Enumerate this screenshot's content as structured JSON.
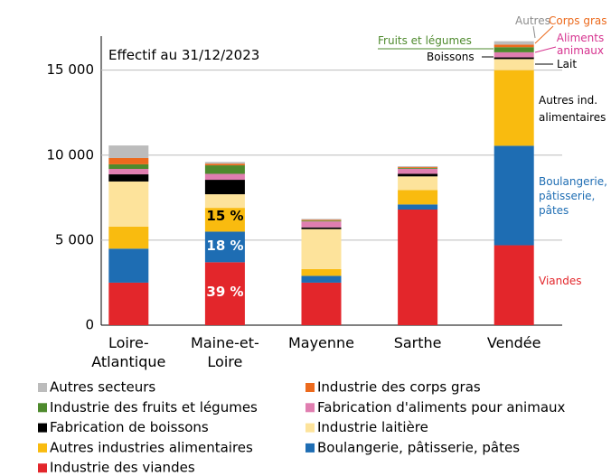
{
  "chart_data": {
    "type": "bar",
    "stacked": true,
    "categories": [
      "Loire-Atlantique",
      "Maine-et-Loire",
      "Mayenne",
      "Sarthe",
      "Vendée"
    ],
    "series": [
      {
        "name": "Industrie des viandes",
        "color": "#e3262b",
        "values": [
          2500,
          3700,
          2500,
          6800,
          4700
        ]
      },
      {
        "name": "Boulangerie, pâtisserie, pâtes",
        "color": "#1e6db3",
        "values": [
          2000,
          1800,
          400,
          300,
          5850
        ]
      },
      {
        "name": "Autres industries alimentaires",
        "color": "#f9bb0f",
        "values": [
          1300,
          1400,
          400,
          850,
          4450
        ]
      },
      {
        "name": "Industrie laitière",
        "color": "#fde39b",
        "values": [
          2650,
          800,
          2350,
          800,
          650
        ]
      },
      {
        "name": "Fabrication de boissons",
        "color": "#000000",
        "values": [
          420,
          850,
          100,
          150,
          100
        ]
      },
      {
        "name": "Fabrication d'aliments pour animaux",
        "color": "#e07eb0",
        "values": [
          320,
          350,
          350,
          300,
          300
        ]
      },
      {
        "name": "Industrie des fruits et légumes",
        "color": "#4e8a2d",
        "values": [
          270,
          500,
          50,
          50,
          300
        ]
      },
      {
        "name": "Industrie des corps gras",
        "color": "#ec6a1d",
        "values": [
          370,
          100,
          50,
          50,
          150
        ]
      },
      {
        "name": "Autres secteurs",
        "color": "#bcbcbc",
        "values": [
          740,
          100,
          50,
          50,
          200
        ]
      }
    ],
    "ylim": [
      0,
      17000
    ],
    "yticks": [
      0,
      {
        "value": 5000,
        "label": "5 000"
      },
      {
        "value": 10000,
        "label": "10 000"
      },
      {
        "value": 15000,
        "label": "15 000"
      }
    ],
    "grid": true,
    "annotations": [
      {
        "text": "Effectif au 31/12/2023",
        "color": "#000000"
      },
      {
        "text": "39 %",
        "color": "#ffffff"
      },
      {
        "text": "18 %",
        "color": "#ffffff"
      },
      {
        "text": "15 %",
        "color": "#000000"
      },
      {
        "text": "Autres",
        "color": "#8c8c8c"
      },
      {
        "text": "Corps gras",
        "color": "#ec6a1d"
      },
      {
        "text": "Aliments animaux",
        "color": "#d6338f"
      },
      {
        "text": "Fruits et légumes",
        "color": "#4e8a2d"
      },
      {
        "text": "Boissons",
        "color": "#000000"
      },
      {
        "text": "Lait",
        "color": "#000000"
      },
      {
        "text": "Autres ind. alimentaires",
        "color": "#000000"
      },
      {
        "text": "Boulangerie, pâtisserie, pâtes",
        "color": "#1e6db3"
      },
      {
        "text": "Viandes",
        "color": "#e3262b"
      }
    ]
  }
}
